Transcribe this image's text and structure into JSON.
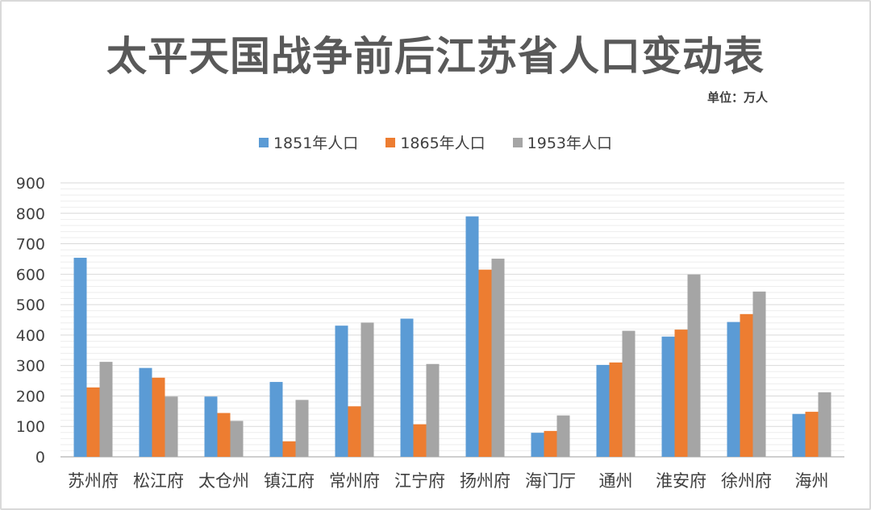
{
  "chart_data": {
    "type": "bar",
    "title": "太平天国战争前后江苏省人口变动表",
    "unit_note": "单位：万人",
    "xlabel": "",
    "ylabel": "",
    "ylim": [
      0,
      900
    ],
    "yticks": [
      "0",
      "100",
      "200",
      "300",
      "400",
      "500",
      "600",
      "700",
      "800",
      "900"
    ],
    "grid": true,
    "legend_position": "top",
    "categories": [
      "苏州府",
      "松江府",
      "太仓州",
      "镇江府",
      "常州府",
      "江宁府",
      "扬州府",
      "海门厅",
      "通州",
      "淮安府",
      "徐州府",
      "海州"
    ],
    "series": [
      {
        "name": "1851年人口",
        "color": "#5b9bd5",
        "values": [
          654,
          292,
          198,
          246,
          431,
          454,
          790,
          79,
          302,
          395,
          443,
          141
        ]
      },
      {
        "name": "1865年人口",
        "color": "#ed7d31",
        "values": [
          228,
          260,
          144,
          51,
          166,
          107,
          615,
          85,
          310,
          418,
          469,
          148
        ]
      },
      {
        "name": "1953年人口",
        "color": "#a5a5a5",
        "values": [
          312,
          198,
          118,
          187,
          441,
          305,
          651,
          136,
          414,
          599,
          543,
          212
        ]
      }
    ]
  }
}
